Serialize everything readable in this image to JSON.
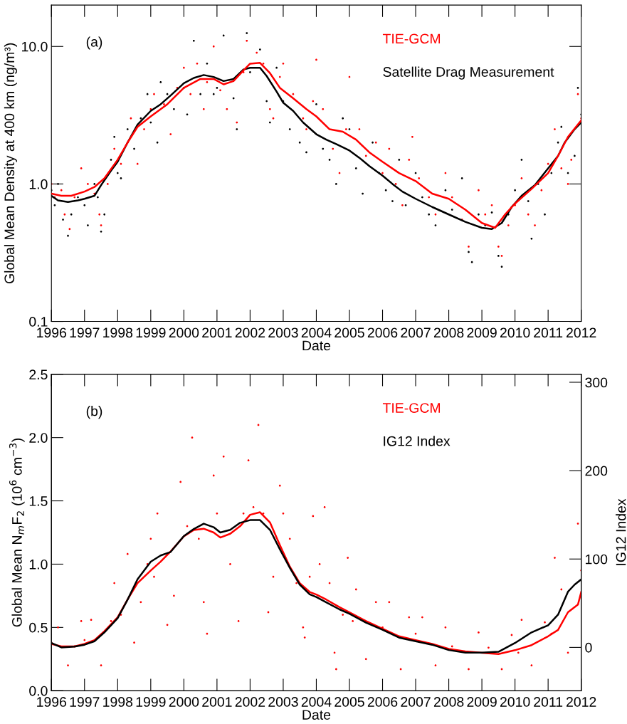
{
  "chart_data": [
    {
      "type": "line",
      "xlabel": "Date",
      "ylabel": "Global Mean Density at 400 km (ng/m³)",
      "annotations": [
        "(a)"
      ],
      "log": "y",
      "legend": "top",
      "grid": false,
      "xlim": [
        1996,
        2012
      ],
      "xticks": [
        1996,
        1997,
        1998,
        1999,
        2000,
        2001,
        2002,
        2003,
        2004,
        2005,
        2006,
        2007,
        2008,
        2009,
        2010,
        2011,
        2012
      ],
      "ylim": [
        0.1,
        20
      ],
      "yticks": [
        {
          "value": 0.1,
          "label": "0.1"
        },
        {
          "value": 1,
          "label": "1.0"
        },
        {
          "value": 10,
          "label": "10.0"
        }
      ],
      "series": [
        {
          "type": "scatter",
          "name": "Satellite Drag Measurement",
          "color": "#000000",
          "x": [
            1996.0,
            1996.1,
            1996.2,
            1996.35,
            1996.5,
            1996.6,
            1996.8,
            1997.0,
            1997.1,
            1997.3,
            1997.4,
            1997.5,
            1997.6,
            1997.8,
            1997.9,
            1998.0,
            1998.1,
            1998.3,
            1998.5,
            1998.7,
            1998.9,
            1999.0,
            1999.2,
            1999.3,
            1999.5,
            1999.7,
            2000.0,
            2000.1,
            2000.3,
            2000.5,
            2000.7,
            2000.9,
            2001.0,
            2001.2,
            2001.5,
            2001.6,
            2001.9,
            2002.0,
            2002.3,
            2002.5,
            2002.6,
            2002.8,
            2003.0,
            2003.2,
            2003.5,
            2003.7,
            2004.0,
            2004.2,
            2004.4,
            2004.6,
            2004.8,
            2005.0,
            2005.2,
            2005.4,
            2005.7,
            2005.9,
            2006.1,
            2006.3,
            2006.5,
            2006.7,
            2007.0,
            2007.2,
            2007.4,
            2007.6,
            2007.9,
            2008.1,
            2008.4,
            2008.6,
            2008.7,
            2008.9,
            2009.1,
            2009.3,
            2009.5,
            2009.6,
            2009.8,
            2010.0,
            2010.2,
            2010.4,
            2010.5,
            2010.7,
            2010.9,
            2011.1,
            2011.3,
            2011.4,
            2011.6,
            2011.8,
            2011.9,
            2012.0
          ],
          "values": [
            0.9,
            0.7,
            1.0,
            0.55,
            0.42,
            0.6,
            0.8,
            0.7,
            0.5,
            1.0,
            0.8,
            0.45,
            0.6,
            1.5,
            2.2,
            1.2,
            1.1,
            2.5,
            1.8,
            3.0,
            4.5,
            2.8,
            2.0,
            5.5,
            4.5,
            3.5,
            5.0,
            3.2,
            11.0,
            4.5,
            7.5,
            4.5,
            5.0,
            12.0,
            4.2,
            2.5,
            12.5,
            6.5,
            9.5,
            4.0,
            2.8,
            7.0,
            4.0,
            2.5,
            2.0,
            1.7,
            3.8,
            1.8,
            1.5,
            1.0,
            3.0,
            2.5,
            1.3,
            0.85,
            2.0,
            1.2,
            0.9,
            0.75,
            1.5,
            0.7,
            1.2,
            0.8,
            0.6,
            0.5,
            0.9,
            0.65,
            1.1,
            0.32,
            0.27,
            0.6,
            0.5,
            0.62,
            0.3,
            0.25,
            0.6,
            0.9,
            1.5,
            0.75,
            0.4,
            1.0,
            0.6,
            1.2,
            2.0,
            2.6,
            1.2,
            1.6,
            5.0,
            3.2
          ]
        },
        {
          "type": "scatter",
          "name": "TIE-GCM",
          "color": "#ff0000",
          "x": [
            1996.0,
            1996.1,
            1996.3,
            1996.4,
            1996.55,
            1996.7,
            1996.9,
            1997.1,
            1997.3,
            1997.45,
            1997.5,
            1997.7,
            1997.9,
            1998.1,
            1998.3,
            1998.4,
            1998.6,
            1998.8,
            1999.0,
            1999.1,
            1999.4,
            1999.6,
            1999.8,
            2000.0,
            2000.2,
            2000.4,
            2000.6,
            2000.7,
            2000.9,
            2001.1,
            2001.3,
            2001.6,
            2001.8,
            2001.9,
            2002.2,
            2002.4,
            2002.6,
            2002.7,
            2002.9,
            2003.0,
            2003.3,
            2003.6,
            2003.7,
            2003.9,
            2004.0,
            2004.2,
            2004.5,
            2004.7,
            2004.9,
            2005.0,
            2005.3,
            2005.5,
            2005.8,
            2006.0,
            2006.2,
            2006.4,
            2006.6,
            2006.8,
            2006.9,
            2007.1,
            2007.4,
            2007.6,
            2007.9,
            2008.1,
            2008.4,
            2008.6,
            2008.9,
            2009.1,
            2009.3,
            2009.5,
            2009.6,
            2009.8,
            2010.0,
            2010.2,
            2010.4,
            2010.6,
            2010.8,
            2011.0,
            2011.2,
            2011.4,
            2011.6,
            2011.7,
            2011.9,
            2012.0
          ],
          "values": [
            1.0,
            0.8,
            0.9,
            0.6,
            0.47,
            0.8,
            1.3,
            1.0,
            0.85,
            0.6,
            0.5,
            1.0,
            1.8,
            1.4,
            2.0,
            3.0,
            1.4,
            2.5,
            3.5,
            4.5,
            3.8,
            2.3,
            5.0,
            7.0,
            4.5,
            7.5,
            3.5,
            5.5,
            10.0,
            4.8,
            3.5,
            2.8,
            6.5,
            11.0,
            9.0,
            7.5,
            3.5,
            3.0,
            6.0,
            7.5,
            4.5,
            3.0,
            2.5,
            4.0,
            8.0,
            3.5,
            1.8,
            1.2,
            2.5,
            6.0,
            2.5,
            1.6,
            2.0,
            1.2,
            1.8,
            1.0,
            0.7,
            1.5,
            2.2,
            1.1,
            0.8,
            0.6,
            1.2,
            0.8,
            0.55,
            0.35,
            0.9,
            0.6,
            0.7,
            0.35,
            0.3,
            0.5,
            0.7,
            1.1,
            0.6,
            0.5,
            0.9,
            1.4,
            2.5,
            1.3,
            1.0,
            1.5,
            4.5,
            3.0
          ]
        },
        {
          "color": "#000000",
          "x": [
            1996.0,
            1996.2,
            1996.5,
            1996.8,
            1997.0,
            1997.3,
            1997.5,
            1997.8,
            1998.0,
            1998.3,
            1998.6,
            1999.0,
            1999.3,
            1999.6,
            2000.0,
            2000.3,
            2000.6,
            2000.9,
            2001.2,
            2001.5,
            2001.8,
            2002.0,
            2002.3,
            2002.5,
            2002.8,
            2003.0,
            2003.3,
            2003.6,
            2004.0,
            2004.3,
            2004.6,
            2005.0,
            2005.3,
            2005.6,
            2006.0,
            2006.3,
            2006.6,
            2007.0,
            2007.5,
            2008.0,
            2008.5,
            2009.0,
            2009.3,
            2009.6,
            2009.9,
            2010.2,
            2010.6,
            2011.0,
            2011.3,
            2011.5,
            2011.8,
            2012.0
          ],
          "values": [
            0.82,
            0.76,
            0.74,
            0.76,
            0.78,
            0.82,
            0.98,
            1.25,
            1.45,
            2.0,
            2.7,
            3.4,
            3.8,
            4.4,
            5.4,
            5.9,
            6.2,
            6.0,
            5.6,
            5.8,
            6.8,
            7.0,
            7.0,
            6.1,
            4.7,
            3.9,
            3.4,
            2.8,
            2.3,
            2.1,
            1.95,
            1.75,
            1.55,
            1.35,
            1.15,
            1.0,
            0.88,
            0.78,
            0.68,
            0.6,
            0.53,
            0.48,
            0.47,
            0.52,
            0.68,
            0.82,
            0.98,
            1.3,
            1.6,
            2.0,
            2.5,
            2.8
          ]
        },
        {
          "color": "#ff0000",
          "x": [
            1996.0,
            1996.3,
            1996.6,
            1997.0,
            1997.3,
            1997.6,
            1998.0,
            1998.3,
            1998.6,
            1999.0,
            1999.5,
            2000.0,
            2000.5,
            2000.9,
            2001.2,
            2001.5,
            2001.8,
            2002.0,
            2002.3,
            2002.6,
            2002.9,
            2003.3,
            2003.7,
            2004.0,
            2004.4,
            2004.8,
            2005.2,
            2005.6,
            2006.0,
            2006.5,
            2007.0,
            2007.5,
            2008.0,
            2008.5,
            2009.0,
            2009.4,
            2009.7,
            2010.0,
            2010.5,
            2011.0,
            2011.3,
            2011.6,
            2012.0
          ],
          "values": [
            0.85,
            0.82,
            0.82,
            0.88,
            0.95,
            1.1,
            1.5,
            2.0,
            2.6,
            3.1,
            3.8,
            5.0,
            5.8,
            5.8,
            5.3,
            5.6,
            6.7,
            7.5,
            7.6,
            6.4,
            5.0,
            4.2,
            3.5,
            3.1,
            2.5,
            2.4,
            2.1,
            1.7,
            1.45,
            1.2,
            1.05,
            0.85,
            0.78,
            0.65,
            0.52,
            0.48,
            0.6,
            0.72,
            0.92,
            1.2,
            1.6,
            2.2,
            2.9
          ]
        }
      ]
    },
    {
      "type": "line",
      "xlabel": "Date",
      "ylabel": "Global Mean N$_{m}$F$_{2}$ (10$^{6}$ cm$^{−3}$)",
      "y2label": "IG12 Index",
      "annotations": [
        "(b)"
      ],
      "legend": "top",
      "grid": false,
      "xlim": [
        1996,
        2012
      ],
      "xticks": [
        1996,
        1997,
        1998,
        1999,
        2000,
        2001,
        2002,
        2003,
        2004,
        2005,
        2006,
        2007,
        2008,
        2009,
        2010,
        2011,
        2012
      ],
      "ylim": [
        0,
        2.5
      ],
      "yticks": [
        {
          "value": 0,
          "label": "0.0"
        },
        {
          "value": 0.5,
          "label": "0.5"
        },
        {
          "value": 1,
          "label": "1.0"
        },
        {
          "value": 1.5,
          "label": "1.5"
        },
        {
          "value": 2,
          "label": "2.0"
        },
        {
          "value": 2.5,
          "label": "2.5"
        }
      ],
      "y2lim": [
        -49,
        309
      ],
      "y2ticks": [
        0,
        100,
        200,
        300
      ],
      "series": [
        {
          "type": "scatter",
          "name": "TIE-GCM",
          "color": "#ff0000",
          "x": [
            1996.0,
            1996.2,
            1996.5,
            1996.7,
            1996.9,
            1997.0,
            1997.2,
            1997.5,
            1997.8,
            1997.9,
            1998.1,
            1998.3,
            1998.5,
            1998.7,
            1998.9,
            1999.0,
            1999.1,
            1999.2,
            1999.5,
            1999.7,
            1999.9,
            2000.1,
            2000.25,
            2000.45,
            2000.6,
            2000.7,
            2000.9,
            2001.0,
            2001.2,
            2001.4,
            2001.65,
            2001.8,
            2001.95,
            2002.1,
            2002.25,
            2002.4,
            2002.55,
            2002.7,
            2002.9,
            2003.0,
            2003.2,
            2003.4,
            2003.6,
            2003.65,
            2003.8,
            2003.9,
            2004.1,
            2004.25,
            2004.4,
            2004.55,
            2004.6,
            2004.8,
            2004.95,
            2005.1,
            2005.2,
            2005.5,
            2005.8,
            2006.0,
            2006.2,
            2006.55,
            2006.8,
            2007.0,
            2007.2,
            2007.6,
            2007.9,
            2008.1,
            2008.6,
            2008.9,
            2009.2,
            2009.6,
            2009.9,
            2010.1,
            2010.2,
            2010.5,
            2010.9,
            2011.1,
            2011.2,
            2011.4,
            2011.6,
            2011.9,
            2012.0
          ],
          "values": [
            0.38,
            0.5,
            0.2,
            0.35,
            0.55,
            0.4,
            0.56,
            0.2,
            0.55,
            0.85,
            0.6,
            1.08,
            0.38,
            0.7,
            1.0,
            1.2,
            0.9,
            1.4,
            0.52,
            0.75,
            1.65,
            1.3,
            2.0,
            1.2,
            0.7,
            0.45,
            1.7,
            1.4,
            1.85,
            1.0,
            0.55,
            1.4,
            1.82,
            1.45,
            2.1,
            1.4,
            0.62,
            0.9,
            1.62,
            1.4,
            1.2,
            0.85,
            0.5,
            0.42,
            0.9,
            1.38,
            1.0,
            1.45,
            0.85,
            0.3,
            0.17,
            0.6,
            1.05,
            0.55,
            0.8,
            0.25,
            0.7,
            0.5,
            0.7,
            0.17,
            0.58,
            0.45,
            0.58,
            0.2,
            0.5,
            0.35,
            0.17,
            0.46,
            0.34,
            0.17,
            0.44,
            0.3,
            0.56,
            0.2,
            0.54,
            0.45,
            1.05,
            0.8,
            0.3,
            1.32,
            0.95
          ]
        },
        {
          "color": "#ff0000",
          "x": [
            1996.0,
            1996.3,
            1996.7,
            1997.0,
            1997.3,
            1997.6,
            1998.0,
            1998.3,
            1998.6,
            1999.0,
            1999.3,
            1999.6,
            2000.0,
            2000.3,
            2000.6,
            2000.9,
            2001.1,
            2001.4,
            2001.7,
            2002.0,
            2002.3,
            2002.6,
            2002.9,
            2003.2,
            2003.5,
            2003.8,
            2004.0,
            2004.3,
            2004.7,
            2005.0,
            2005.5,
            2006.0,
            2006.5,
            2007.0,
            2007.5,
            2008.0,
            2008.5,
            2009.0,
            2009.5,
            2010.0,
            2010.5,
            2011.0,
            2011.3,
            2011.6,
            2011.9,
            2012.0
          ],
          "values": [
            0.37,
            0.35,
            0.35,
            0.37,
            0.4,
            0.47,
            0.58,
            0.72,
            0.85,
            0.95,
            1.02,
            1.1,
            1.22,
            1.27,
            1.28,
            1.25,
            1.21,
            1.24,
            1.3,
            1.39,
            1.41,
            1.33,
            1.15,
            0.98,
            0.85,
            0.78,
            0.76,
            0.72,
            0.66,
            0.62,
            0.55,
            0.49,
            0.43,
            0.4,
            0.37,
            0.33,
            0.31,
            0.3,
            0.29,
            0.32,
            0.36,
            0.43,
            0.48,
            0.62,
            0.68,
            0.78
          ]
        },
        {
          "name": "IG12 Index",
          "axis": "y2",
          "color": "#000000",
          "x": [
            1996.0,
            1996.3,
            1996.7,
            1997.0,
            1997.3,
            1997.6,
            1998.0,
            1998.3,
            1998.6,
            1999.0,
            1999.3,
            1999.6,
            2000.0,
            2000.3,
            2000.6,
            2000.9,
            2001.1,
            2001.4,
            2001.7,
            2002.0,
            2002.3,
            2002.6,
            2002.9,
            2003.2,
            2003.5,
            2003.8,
            2004.0,
            2004.3,
            2004.7,
            2005.0,
            2005.5,
            2006.0,
            2006.5,
            2007.0,
            2007.5,
            2008.0,
            2008.5,
            2009.0,
            2009.5,
            2010.0,
            2010.5,
            2011.0,
            2011.3,
            2011.6,
            2011.8,
            2012.0
          ],
          "values": [
            5,
            0,
            1,
            3,
            7,
            17,
            33,
            54,
            77,
            97,
            104,
            108,
            126,
            134,
            140,
            136,
            130,
            133,
            141,
            144,
            144,
            133,
            111,
            90,
            71,
            60,
            57,
            51,
            43,
            38,
            28,
            20,
            11,
            7,
            3,
            -3,
            -6,
            -6,
            -5,
            5,
            17,
            25,
            37,
            63,
            71,
            77
          ]
        }
      ]
    }
  ]
}
